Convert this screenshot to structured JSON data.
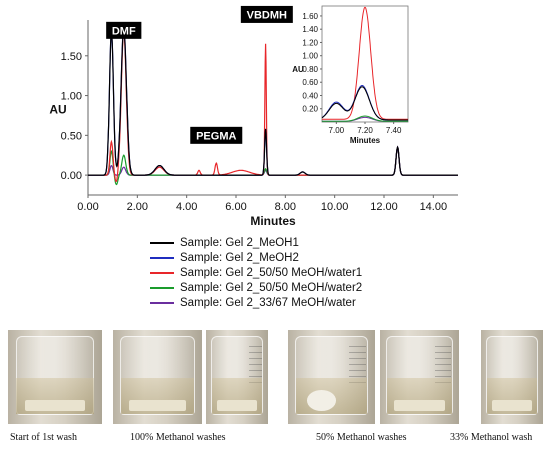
{
  "chart_data": [
    {
      "type": "line",
      "title": "",
      "xlabel": "Minutes",
      "ylabel": "AU",
      "xlim": [
        0,
        15
      ],
      "ylim": [
        -0.25,
        1.95
      ],
      "xticks": [
        "0.00",
        "2.00",
        "4.00",
        "6.00",
        "8.00",
        "10.00",
        "12.00",
        "14.00"
      ],
      "xtick_values": [
        0,
        2,
        4,
        6,
        8,
        10,
        12,
        14
      ],
      "yticks": [
        "0.00",
        "0.50",
        "1.00",
        "1.50"
      ],
      "ytick_values": [
        0,
        0.5,
        1.0,
        1.5
      ],
      "annotations": [
        {
          "text": "DMF",
          "x": 1.45,
          "y": 1.82
        },
        {
          "text": "PEGMA",
          "x": 5.2,
          "y": 0.5
        },
        {
          "text": "VBDMH",
          "x": 7.25,
          "y": 2.02
        }
      ],
      "series": [
        {
          "name": "Sample: Gel 2_MeOH1",
          "color": "#000000",
          "peaks": [
            [
              0.95,
              1.8,
              0.08
            ],
            [
              1.45,
              1.83,
              0.11
            ],
            [
              2.9,
              0.12,
              0.18
            ],
            [
              7.2,
              0.58,
              0.04
            ],
            [
              8.7,
              0.04,
              0.1
            ],
            [
              12.55,
              0.35,
              0.06
            ]
          ]
        },
        {
          "name": "Sample: Gel 2_MeOH2",
          "color": "#1f2dbf",
          "peaks": [
            [
              0.95,
              1.8,
              0.08
            ],
            [
              1.45,
              1.86,
              0.11
            ],
            [
              2.9,
              0.12,
              0.18
            ],
            [
              7.2,
              0.58,
              0.04
            ],
            [
              8.7,
              0.04,
              0.1
            ],
            [
              12.55,
              0.35,
              0.06
            ]
          ]
        },
        {
          "name": "Sample: Gel 2_50/50 MeOH/water1",
          "color": "#e8262a",
          "peaks": [
            [
              0.95,
              0.42,
              0.06
            ],
            [
              1.15,
              -0.1,
              0.05
            ],
            [
              1.45,
              1.8,
              0.1
            ],
            [
              2.9,
              0.1,
              0.18
            ],
            [
              4.5,
              0.06,
              0.05
            ],
            [
              5.2,
              0.15,
              0.05
            ],
            [
              6.2,
              0.06,
              0.35
            ],
            [
              7.2,
              1.65,
              0.03
            ],
            [
              12.55,
              0.35,
              0.06
            ]
          ]
        },
        {
          "name": "Sample: Gel 2_50/50 MeOH/water2",
          "color": "#1a9c2c",
          "peaks": [
            [
              0.95,
              0.3,
              0.06
            ],
            [
              1.15,
              -0.12,
              0.06
            ],
            [
              1.45,
              0.25,
              0.08
            ],
            [
              7.2,
              0.08,
              0.05
            ],
            [
              12.55,
              0.35,
              0.06
            ]
          ]
        },
        {
          "name": "Sample: Gel 2_33/67 MeOH/water",
          "color": "#6a2e9e",
          "peaks": [
            [
              0.95,
              0.12,
              0.06
            ],
            [
              1.45,
              0.1,
              0.08
            ],
            [
              7.2,
              0.06,
              0.05
            ],
            [
              12.55,
              0.35,
              0.06
            ]
          ]
        }
      ]
    },
    {
      "type": "line",
      "title": "",
      "xlabel": "Minutes",
      "ylabel": "AU",
      "xlim": [
        6.9,
        7.5
      ],
      "ylim": [
        0,
        1.75
      ],
      "xticks": [
        "7.00",
        "7.20",
        "7.40"
      ],
      "xtick_values": [
        7.0,
        7.2,
        7.4
      ],
      "yticks": [
        "0.20",
        "0.40",
        "0.60",
        "0.80",
        "1.00",
        "1.20",
        "1.40",
        "1.60"
      ],
      "ytick_values": [
        0.2,
        0.4,
        0.6,
        0.8,
        1.0,
        1.2,
        1.4,
        1.6
      ],
      "series": [
        {
          "color": "#000000",
          "peaks": [
            [
              7.18,
              0.5,
              0.05
            ],
            [
              7.0,
              0.25,
              0.05
            ]
          ],
          "base": 0.03
        },
        {
          "color": "#1f2dbf",
          "peaks": [
            [
              7.18,
              0.52,
              0.05
            ],
            [
              7.0,
              0.27,
              0.05
            ]
          ],
          "base": 0.03
        },
        {
          "color": "#e8262a",
          "peaks": [
            [
              7.2,
              1.69,
              0.04
            ]
          ],
          "base": 0.04
        },
        {
          "color": "#1a9c2c",
          "peaks": [
            [
              7.2,
              0.08,
              0.05
            ]
          ],
          "base": 0.01
        },
        {
          "color": "#6a2e9e",
          "peaks": [
            [
              7.2,
              0.06,
              0.05
            ]
          ],
          "base": 0.01
        }
      ]
    }
  ],
  "legend": [
    {
      "label": "Sample: Gel 2_MeOH1",
      "color": "#000000"
    },
    {
      "label": "Sample: Gel 2_MeOH2",
      "color": "#1f2dbf"
    },
    {
      "label": "Sample: Gel 2_50/50 MeOH/water1",
      "color": "#e8262a"
    },
    {
      "label": "Sample: Gel 2_50/50 MeOH/water2",
      "color": "#1a9c2c"
    },
    {
      "label": "Sample: Gel 2_33/67 MeOH/water",
      "color": "#6a2e9e"
    }
  ],
  "captions": {
    "start": "Start of 1st wash",
    "methanol100": "100% Methanol washes",
    "methanol50": "50% Methanol washes",
    "methanol33": "33% Methanol wash"
  }
}
